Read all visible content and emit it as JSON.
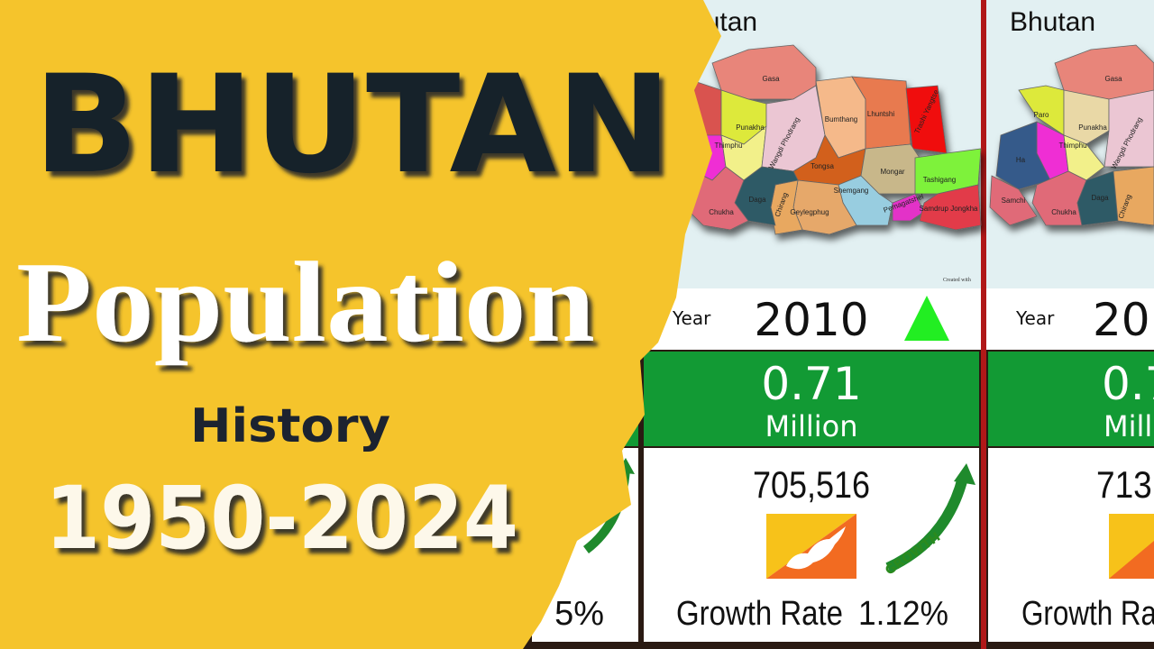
{
  "thumbnail": {
    "country": "BHUTAN",
    "topic": "Population",
    "subtitle": "History",
    "years": "1950-2024"
  },
  "previous_card": {
    "growth_rate": "5%"
  },
  "cards": [
    {
      "title": "Bhutan",
      "map_labels": [
        "Gasa",
        "Punakha",
        "Thimphu",
        "Wangdi Phodrang",
        "Bumthang",
        "Lhuntshi",
        "Trashi Yangtse",
        "Tongsa",
        "Mongar",
        "Tashigang",
        "Shemgang",
        "Geylegphug",
        "Chirang",
        "Daga",
        "Chukha",
        "Samdrup Jongkha",
        "Pemagatshel"
      ],
      "credit": "Created with",
      "year_label": "Year",
      "year": "2010",
      "population_millions": "0.71",
      "unit": "Million",
      "population": "705,516",
      "growth_badge": "GROWTH",
      "growth_rate_label": "Growth Rate",
      "growth_rate": "1.12%"
    },
    {
      "title": "Bhutan",
      "map_labels": [
        "Gasa",
        "Punakha",
        "Paro",
        "Thimphu",
        "Ha",
        "Samchi",
        "Chukha",
        "Daga",
        "Chirang",
        "Wangdi Phodrang"
      ],
      "year_label": "Year",
      "year": "20",
      "population_millions": "0.7",
      "unit": "Mill",
      "population": "713,",
      "growth_rate_label": "Growth Ra"
    }
  ]
}
